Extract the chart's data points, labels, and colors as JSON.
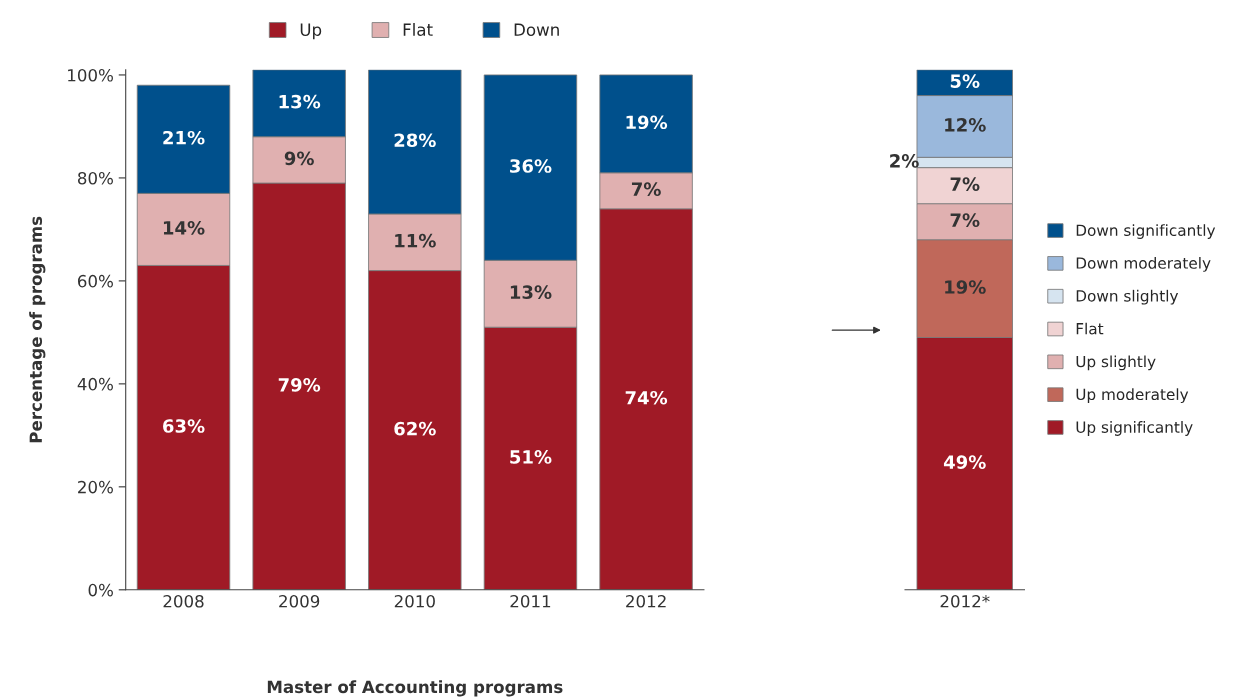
{
  "chart_data": [
    {
      "type": "bar",
      "stacked": true,
      "categories": [
        "2008",
        "2009",
        "2010",
        "2011",
        "2012"
      ],
      "xlabel": "Master of Accounting programs",
      "ylabel": "Percentage of programs",
      "series": [
        {
          "name": "Up",
          "color": "#a01a26",
          "values": [
            63,
            79,
            62,
            51,
            74
          ],
          "value_labels": [
            "63%",
            "79%",
            "62%",
            "51%",
            "74%"
          ]
        },
        {
          "name": "Flat",
          "color": "#e0b0b0",
          "values": [
            14,
            9,
            11,
            13,
            7
          ],
          "value_labels": [
            "14%",
            "9%",
            "11%",
            "13%",
            "7%"
          ]
        },
        {
          "name": "Down",
          "color": "#00508c",
          "values": [
            21,
            13,
            28,
            36,
            19
          ],
          "value_labels": [
            "21%",
            "13%",
            "28%",
            "36%",
            "19%"
          ]
        }
      ],
      "ylim": [
        0,
        101
      ],
      "yticks": [
        {
          "value": 0,
          "label": "0%"
        },
        {
          "value": 20,
          "label": "20%"
        },
        {
          "value": 40,
          "label": "40%"
        },
        {
          "value": 60,
          "label": "60%"
        },
        {
          "value": 80,
          "label": "80%"
        },
        {
          "value": 100,
          "label": "100%"
        }
      ],
      "legend": "top",
      "grid": false
    },
    {
      "type": "bar",
      "stacked": true,
      "categories": [
        "2012*"
      ],
      "series": [
        {
          "name": "Up significantly",
          "color": "#a01a26",
          "values": [
            49
          ],
          "value_labels": [
            "49%"
          ]
        },
        {
          "name": "Up moderately",
          "color": "#c0685a",
          "values": [
            19
          ],
          "value_labels": [
            "19%"
          ]
        },
        {
          "name": "Up slightly",
          "color": "#e0b0b0",
          "values": [
            7
          ],
          "value_labels": [
            "7%"
          ]
        },
        {
          "name": "Flat",
          "color": "#f0d3d3",
          "values": [
            7
          ],
          "value_labels": [
            "7%"
          ]
        },
        {
          "name": "Down slightly",
          "color": "#d6e4f0",
          "values": [
            2
          ],
          "value_labels": [
            "2%"
          ]
        },
        {
          "name": "Down moderately",
          "color": "#9ab8dc",
          "values": [
            12
          ],
          "value_labels": [
            "12%"
          ]
        },
        {
          "name": "Down significantly",
          "color": "#00508c",
          "values": [
            5
          ],
          "value_labels": [
            "5%"
          ]
        }
      ],
      "ylim": [
        0,
        101
      ],
      "tick_labels": "x",
      "legend": "right",
      "grid": false
    }
  ]
}
